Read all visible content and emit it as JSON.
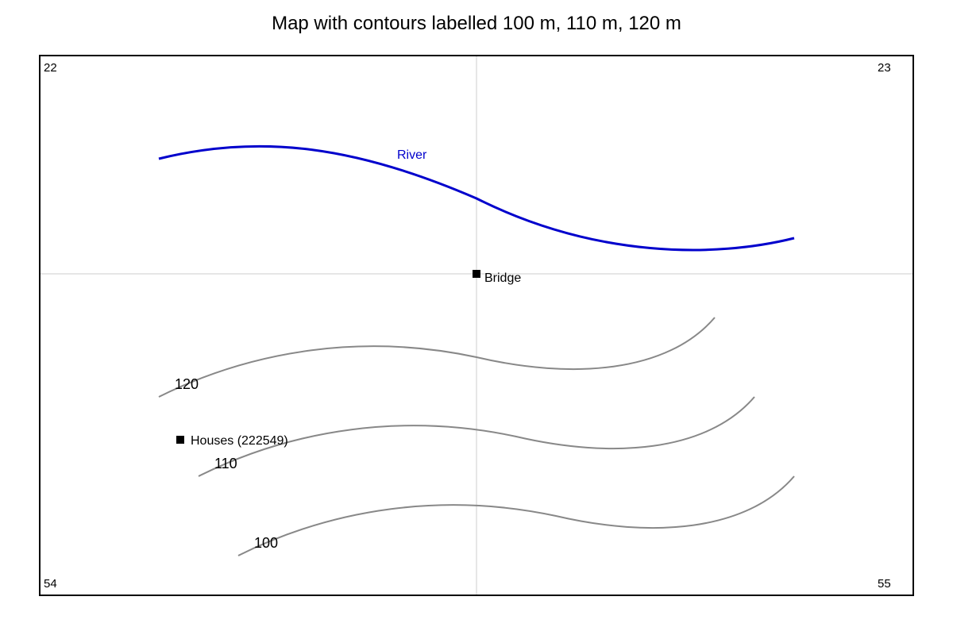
{
  "title": "Map with contours labelled 100 m, 110 m, 120 m",
  "colors": {
    "river": "#0000cc",
    "contour": "#888888",
    "grid": "#dddddd",
    "frame": "#000000",
    "marker": "#000000"
  },
  "grid": {
    "corners": {
      "top_left": "22",
      "top_right": "23",
      "bottom_left": "54",
      "bottom_right": "55"
    }
  },
  "river": {
    "label": "River"
  },
  "features": {
    "bridge": {
      "label": "Bridge",
      "icon": "square-marker"
    },
    "houses": {
      "label": "Houses (222549)",
      "icon": "square-marker"
    }
  },
  "contours": [
    {
      "label": "120"
    },
    {
      "label": "110"
    },
    {
      "label": "100"
    }
  ]
}
